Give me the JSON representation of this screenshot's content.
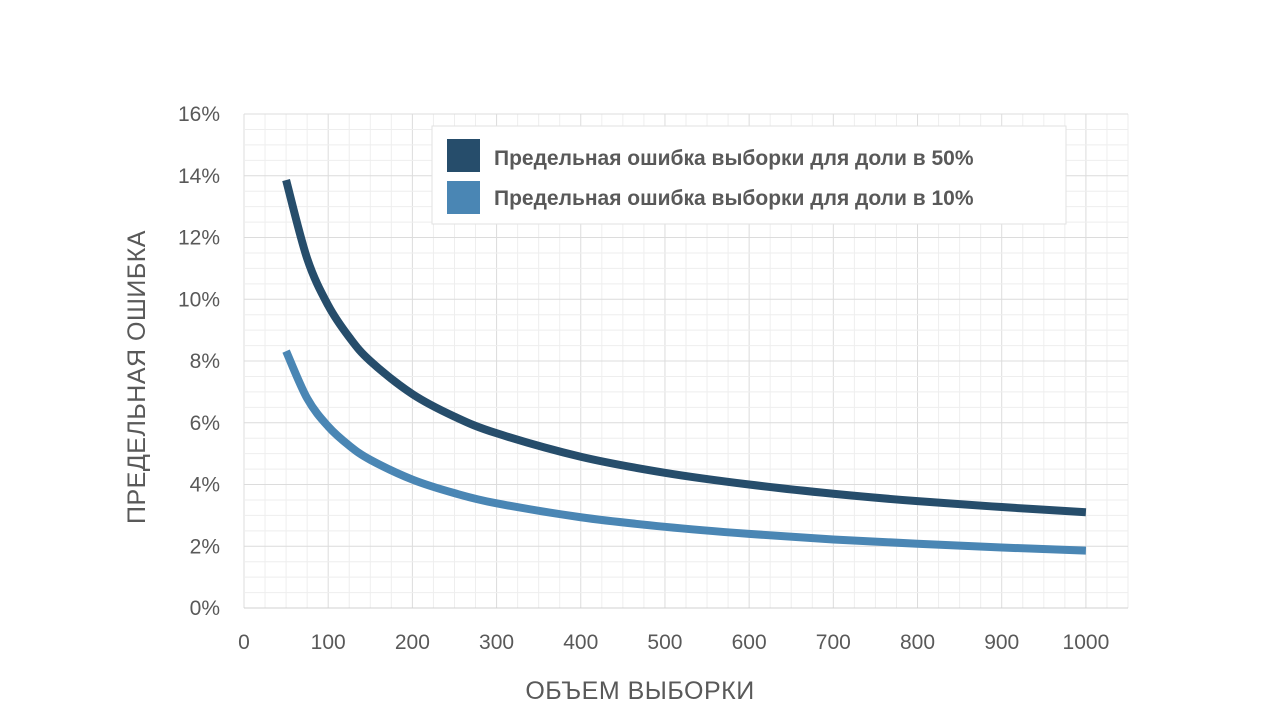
{
  "chart_data": {
    "type": "line",
    "xlabel": "ОБЪЕМ ВЫБОРКИ",
    "ylabel": "ПРЕДЕЛЬНАЯ ОШИБКА",
    "xlim": [
      0,
      1050
    ],
    "ylim": [
      0,
      16
    ],
    "x_ticks": [
      "0",
      "100",
      "200",
      "300",
      "400",
      "500",
      "600",
      "700",
      "800",
      "900",
      "1000"
    ],
    "y_ticks": [
      "0%",
      "2%",
      "4%",
      "6%",
      "8%",
      "10%",
      "12%",
      "14%",
      "16%"
    ],
    "grid": true,
    "legend_position": "top-right",
    "x": [
      50,
      75,
      100,
      125,
      150,
      200,
      250,
      300,
      400,
      500,
      600,
      700,
      800,
      900,
      1000
    ],
    "series": [
      {
        "name": "Предельная ошибка выборки для доли в 50%",
        "color": "#264d6b",
        "values": [
          13.86,
          11.32,
          9.8,
          8.77,
          8.0,
          6.93,
          6.2,
          5.66,
          4.9,
          4.38,
          4.0,
          3.7,
          3.46,
          3.27,
          3.1
        ]
      },
      {
        "name": "Предельная ошибка выборки для доли в 10%",
        "color": "#4a86b4",
        "values": [
          8.32,
          6.79,
          5.88,
          5.26,
          4.8,
          4.16,
          3.72,
          3.39,
          2.94,
          2.63,
          2.4,
          2.22,
          2.08,
          1.96,
          1.86
        ]
      }
    ]
  }
}
